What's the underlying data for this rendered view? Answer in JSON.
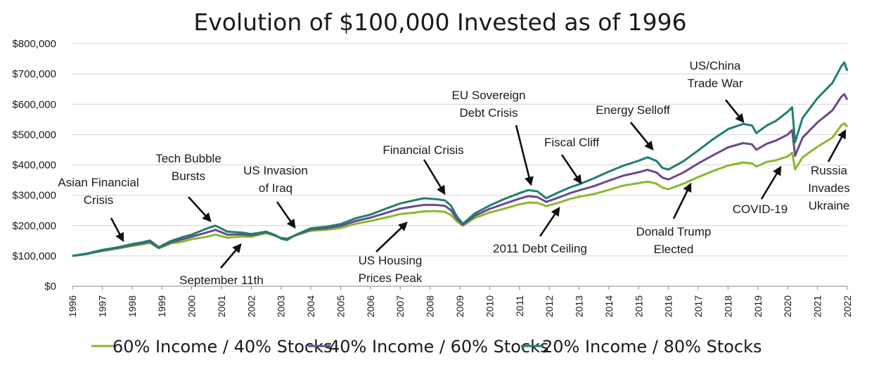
{
  "chart_data": {
    "type": "line",
    "title": "Evolution of $100,000 Invested as of 1996",
    "xlabel": "",
    "ylabel": "",
    "ylim": [
      0,
      800000
    ],
    "xlim": [
      1996,
      2022
    ],
    "y_ticks": [
      0,
      100000,
      200000,
      300000,
      400000,
      500000,
      600000,
      700000,
      800000
    ],
    "y_tick_labels": [
      "$0",
      "$100,000",
      "$200,000",
      "$300,000",
      "$400,000",
      "$500,000",
      "$600,000",
      "$700,000",
      "$800,000"
    ],
    "x_ticks": [
      1996,
      1997,
      1998,
      1999,
      2000,
      2001,
      2002,
      2003,
      2004,
      2005,
      2006,
      2007,
      2008,
      2009,
      2010,
      2011,
      2012,
      2013,
      2014,
      2015,
      2016,
      2017,
      2018,
      2019,
      2020,
      2021,
      2022
    ],
    "x_tick_labels": [
      "1996",
      "1997",
      "1998",
      "1999",
      "2000",
      "2001",
      "2002",
      "2003",
      "2004",
      "2005",
      "2006",
      "2007",
      "2008",
      "2009",
      "2010",
      "2011",
      "2012",
      "2013",
      "2014",
      "2015",
      "2016",
      "2017",
      "2018",
      "2019",
      "2020",
      "2021",
      "2022"
    ],
    "grid": "horizontal",
    "legend_position": "bottom",
    "x": [
      1996.0,
      1996.5,
      1997.0,
      1997.5,
      1998.0,
      1998.3,
      1998.6,
      1998.9,
      1999.3,
      1999.7,
      2000.0,
      2000.5,
      2000.8,
      2001.2,
      2001.7,
      2002.0,
      2002.5,
      2002.8,
      2003.0,
      2003.2,
      2003.5,
      2004.0,
      2004.5,
      2005.0,
      2005.5,
      2006.0,
      2006.5,
      2007.0,
      2007.5,
      2007.8,
      2008.2,
      2008.5,
      2008.7,
      2008.9,
      2009.1,
      2009.5,
      2010.0,
      2010.5,
      2011.0,
      2011.3,
      2011.6,
      2011.9,
      2012.3,
      2012.7,
      2013.0,
      2013.5,
      2014.0,
      2014.5,
      2015.0,
      2015.3,
      2015.6,
      2015.8,
      2016.0,
      2016.5,
      2017.0,
      2017.5,
      2018.0,
      2018.5,
      2018.8,
      2018.95,
      2019.3,
      2019.6,
      2020.0,
      2020.15,
      2020.25,
      2020.5,
      2021.0,
      2021.5,
      2021.8,
      2021.9,
      2022.0
    ],
    "series": [
      {
        "name": "60% Income / 40% Stocks",
        "color": "#8ab82e",
        "values": [
          100000,
          107000,
          116000,
          124000,
          133000,
          137000,
          143000,
          125000,
          141000,
          147000,
          155000,
          163000,
          170000,
          160000,
          164000,
          163000,
          175000,
          166000,
          160000,
          158000,
          168000,
          183000,
          186000,
          192000,
          206000,
          215000,
          226000,
          238000,
          243000,
          247000,
          248000,
          245000,
          235000,
          214000,
          200000,
          225000,
          243000,
          256000,
          270000,
          276000,
          275000,
          264000,
          275000,
          288000,
          295000,
          304000,
          318000,
          332000,
          340000,
          345000,
          338000,
          325000,
          320000,
          338000,
          360000,
          380000,
          398000,
          408000,
          405000,
          395000,
          410000,
          415000,
          428000,
          440000,
          385000,
          425000,
          460000,
          490000,
          530000,
          537000,
          525000
        ]
      },
      {
        "name": "40% Income / 60% Stocks",
        "color": "#6a4a8c",
        "values": [
          100000,
          107000,
          118000,
          126000,
          136000,
          141000,
          147000,
          127000,
          145000,
          155000,
          163000,
          177000,
          186000,
          170000,
          171000,
          168000,
          178000,
          168000,
          158000,
          155000,
          169000,
          187000,
          191000,
          199000,
          215000,
          226000,
          241000,
          256000,
          264000,
          268000,
          268000,
          265000,
          251000,
          222000,
          203000,
          232000,
          255000,
          272000,
          289000,
          297000,
          294000,
          278000,
          292000,
          307000,
          316000,
          330000,
          348000,
          365000,
          376000,
          384000,
          375000,
          358000,
          352000,
          375000,
          405000,
          432000,
          458000,
          472000,
          468000,
          450000,
          470000,
          480000,
          500000,
          515000,
          430000,
          490000,
          540000,
          580000,
          625000,
          633000,
          615000
        ]
      },
      {
        "name": "20% Income / 80% Stocks",
        "color": "#1f7f71",
        "values": [
          100000,
          108000,
          120000,
          128000,
          139000,
          144000,
          151000,
          129000,
          149000,
          162000,
          170000,
          190000,
          200000,
          180000,
          177000,
          172000,
          180000,
          169000,
          157000,
          152000,
          170000,
          191000,
          196000,
          205000,
          224000,
          236000,
          255000,
          273000,
          284000,
          290000,
          287000,
          283000,
          266000,
          230000,
          206000,
          240000,
          266000,
          288000,
          307000,
          317000,
          313000,
          290000,
          309000,
          326000,
          336000,
          356000,
          378000,
          398000,
          414000,
          425000,
          413000,
          390000,
          385000,
          412000,
          448000,
          485000,
          518000,
          535000,
          530000,
          505000,
          530000,
          545000,
          575000,
          590000,
          475000,
          555000,
          620000,
          670000,
          725000,
          738000,
          710000
        ]
      }
    ],
    "annotations": [
      {
        "lines": [
          "Asian Financial",
          "Crisis"
        ]
      },
      {
        "lines": [
          "Tech Bubble",
          "Bursts"
        ]
      },
      {
        "lines": [
          "US Invasion",
          "of Iraq"
        ]
      },
      {
        "lines": [
          "September 11th"
        ]
      },
      {
        "lines": [
          "US Housing",
          "Prices Peak"
        ]
      },
      {
        "lines": [
          "Financial Crisis"
        ]
      },
      {
        "lines": [
          "EU Sovereign",
          "Debt Crisis"
        ]
      },
      {
        "lines": [
          "2011  Debt Ceiling"
        ]
      },
      {
        "lines": [
          "Fiscal Cliff"
        ]
      },
      {
        "lines": [
          "Energy  Selloff"
        ]
      },
      {
        "lines": [
          "Donald Trump",
          "Elected"
        ]
      },
      {
        "lines": [
          "US/China",
          "Trade War"
        ]
      },
      {
        "lines": [
          "COVID-19"
        ]
      },
      {
        "lines": [
          "Russia",
          "Invades",
          "Ukraine"
        ]
      }
    ]
  }
}
